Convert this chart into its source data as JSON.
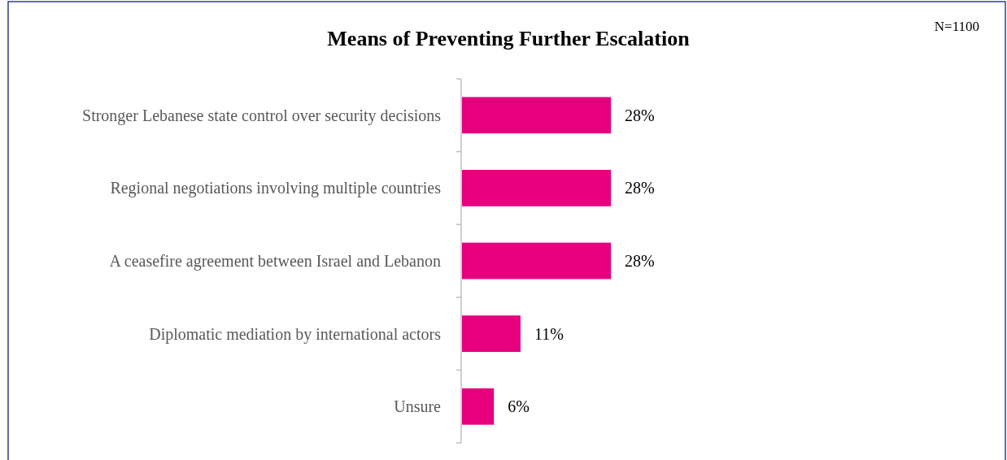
{
  "chart_data": {
    "type": "bar",
    "orientation": "horizontal",
    "title": "Means of Preventing Further Escalation",
    "annotations": [
      "N=1100"
    ],
    "categories": [
      "Stronger Lebanese state control over security decisions",
      "Regional negotiations involving multiple countries",
      "A ceasefire agreement between Israel and Lebanon",
      "Diplomatic mediation by international actors",
      "Unsure"
    ],
    "values": [
      28,
      28,
      28,
      11,
      6
    ],
    "value_labels": [
      "28%",
      "28%",
      "28%",
      "11%",
      "6%"
    ],
    "color": "#e6007e"
  }
}
